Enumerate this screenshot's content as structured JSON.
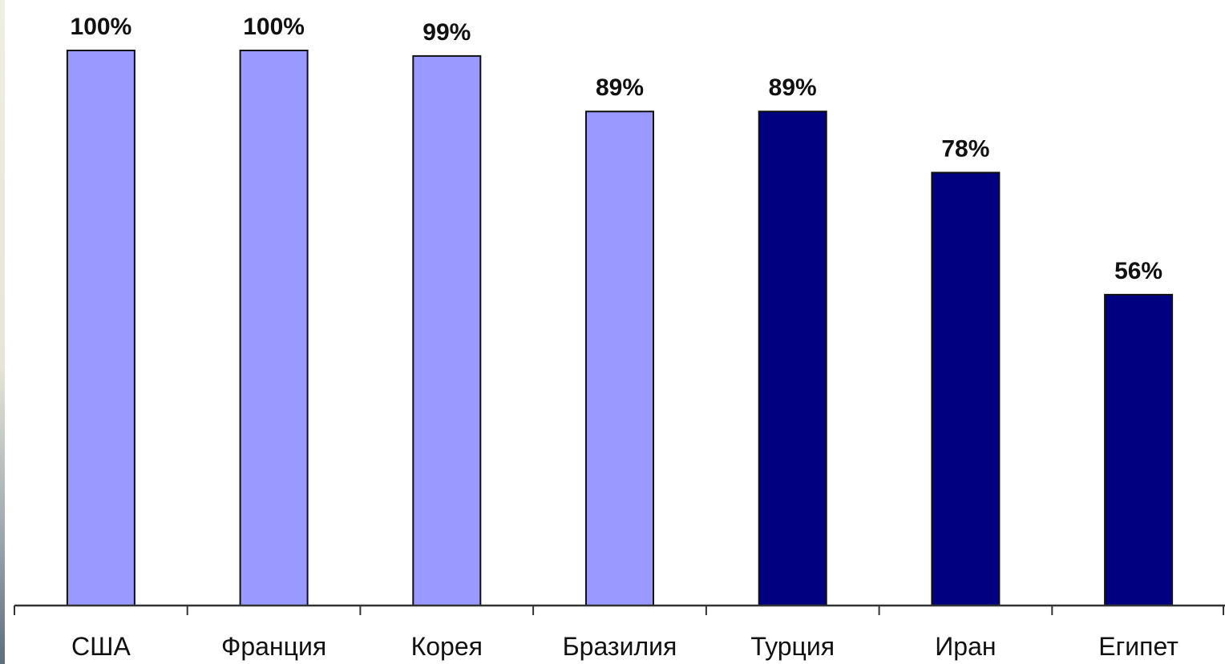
{
  "chart_data": {
    "type": "bar",
    "title": "",
    "xlabel": "",
    "ylabel": "",
    "ylim": [
      0,
      100
    ],
    "grid": false,
    "categories": [
      "США",
      "Франция",
      "Корея",
      "Бразилия",
      "Турция",
      "Иран",
      "Египет"
    ],
    "values": [
      100,
      100,
      99,
      89,
      89,
      78,
      56
    ],
    "value_labels": [
      "100%",
      "100%",
      "99%",
      "89%",
      "89%",
      "78%",
      "56%"
    ],
    "bar_colors": [
      "#9999ff",
      "#9999ff",
      "#9999ff",
      "#9999ff",
      "#000080",
      "#000080",
      "#000080"
    ],
    "axis_color": "#333333"
  }
}
